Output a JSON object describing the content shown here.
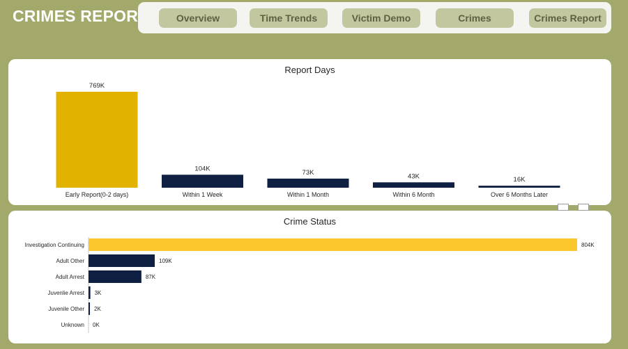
{
  "header": {
    "title": "CRIMES REPORT"
  },
  "nav": {
    "items": [
      {
        "label": "Overview"
      },
      {
        "label": "Time Trends"
      },
      {
        "label": "Victim Demo"
      },
      {
        "label": "Crimes"
      },
      {
        "label": "Crimes Report"
      }
    ]
  },
  "colors": {
    "highlight_bar": "#e2b200",
    "highlight_bar_2": "#fcc72c",
    "bar": "#0e1f41",
    "page_bg": "#a3a86b",
    "nav_button": "#c2c7a0"
  },
  "chart_data": [
    {
      "type": "bar",
      "title": "Report Days",
      "categories": [
        "Early Report(0-2 days)",
        "Within 1 Week",
        "Within 1 Month",
        "Within 6 Month",
        "Over 6 Months Later"
      ],
      "values": [
        769,
        104,
        73,
        43,
        16
      ],
      "data_labels": [
        "769K",
        "104K",
        "73K",
        "43K",
        "16K"
      ],
      "unit": "K",
      "ylim": [
        0,
        769
      ],
      "grid": false,
      "legend": "none"
    },
    {
      "type": "bar",
      "orientation": "horizontal",
      "title": "Crime Status",
      "categories": [
        "Investigation Continuing",
        "Adult Other",
        "Adult Arrest",
        "Juvenlie Arrest",
        "Juvenile Other",
        "Unknown"
      ],
      "values": [
        804,
        109,
        87,
        3,
        2,
        0
      ],
      "data_labels": [
        "804K",
        "109K",
        "87K",
        "3K",
        "2K",
        "0K"
      ],
      "unit": "K",
      "xlim": [
        0,
        804
      ],
      "grid": false,
      "legend": "none"
    }
  ]
}
